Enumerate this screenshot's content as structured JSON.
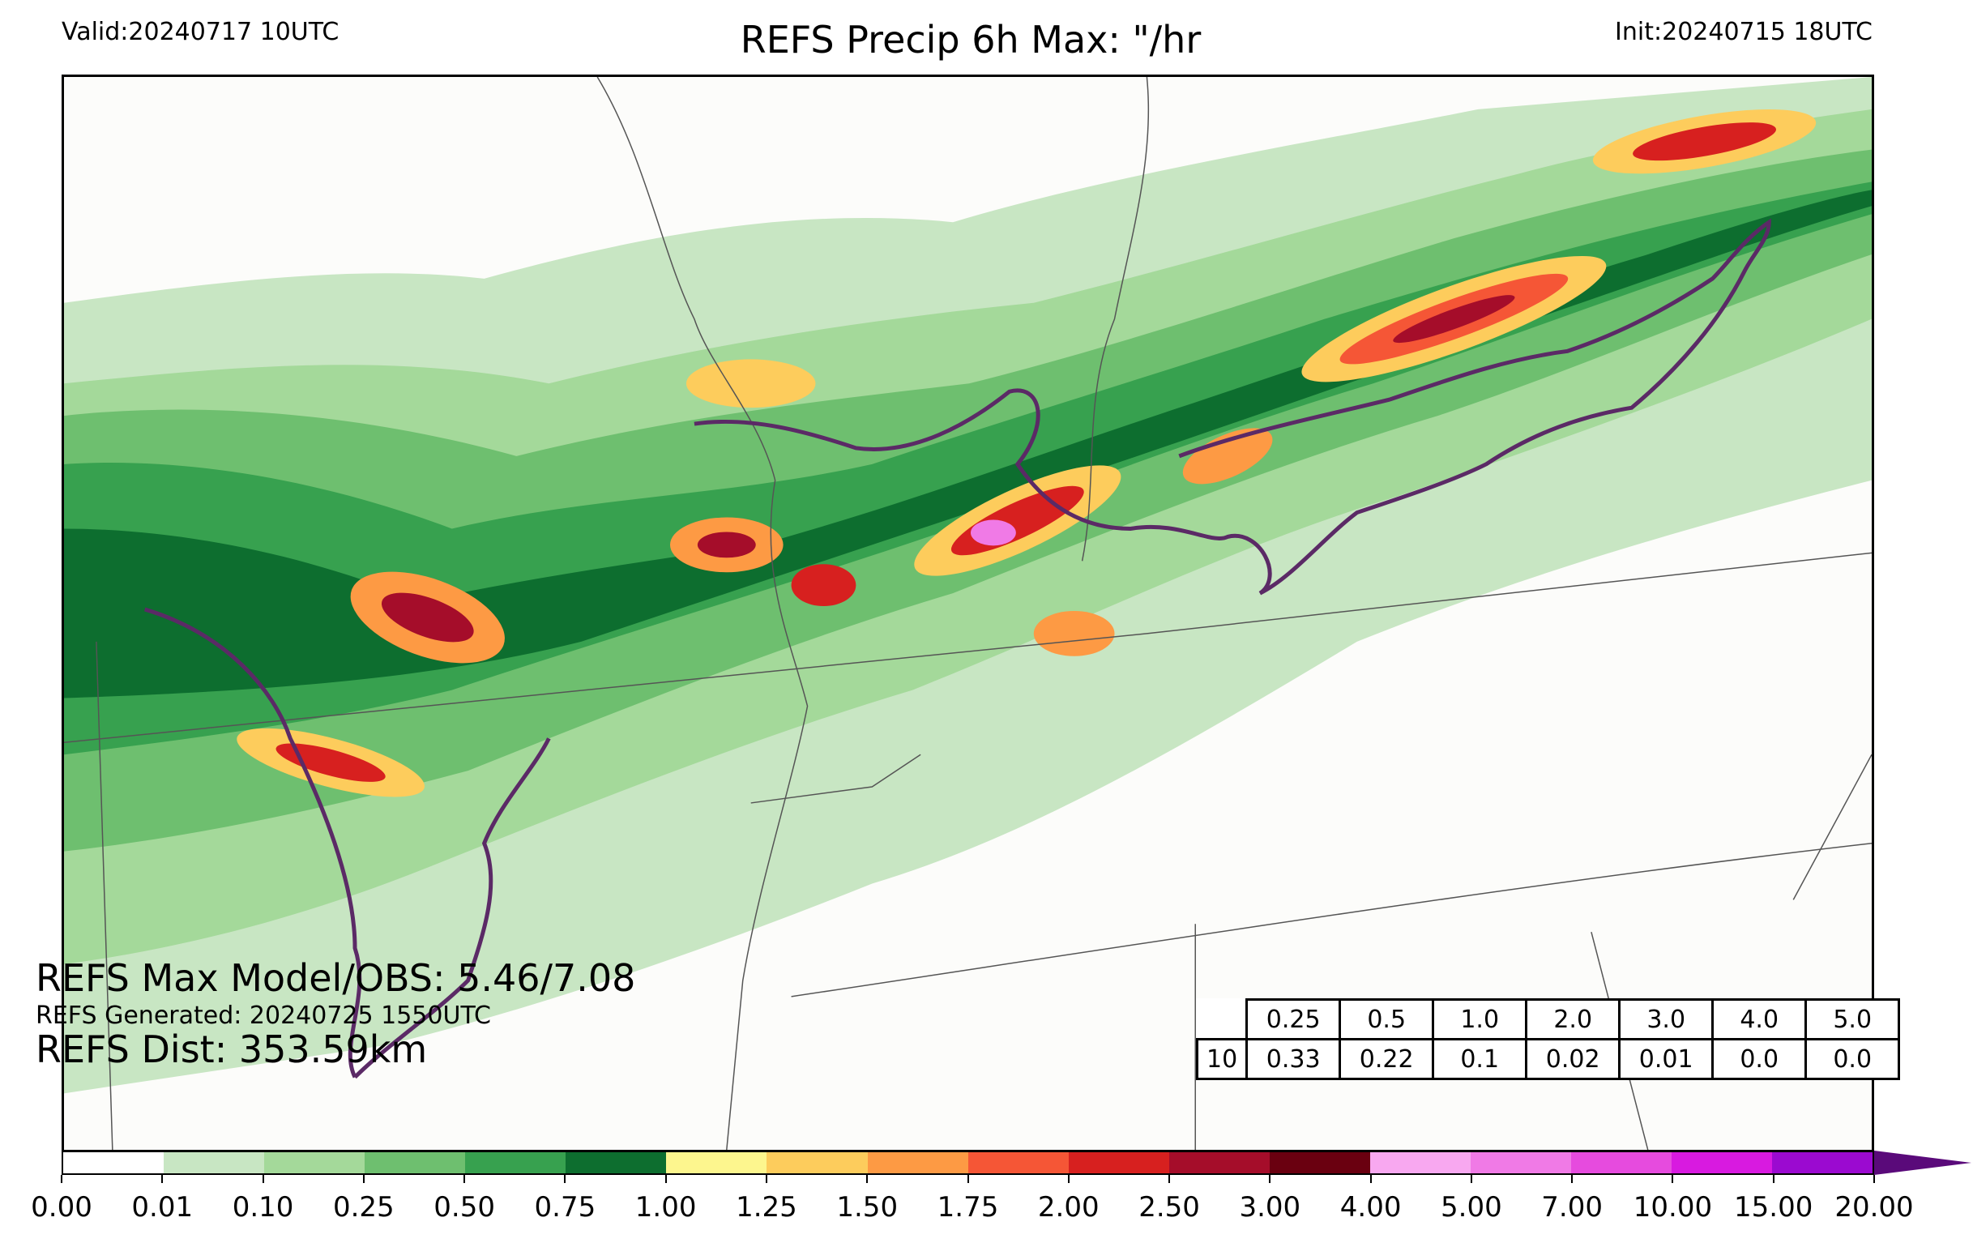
{
  "header": {
    "valid": "Valid:20240717 10UTC",
    "title": "REFS Precip 6h Max: \"/hr",
    "init": "Init:20240715 18UTC"
  },
  "stats": {
    "max_line": "REFS Max Model/OBS: 5.46/7.08",
    "generated_line": "REFS Generated: 20240725 1550UTC",
    "dist_line": "REFS Dist: 353.59km"
  },
  "prob_table": {
    "row_label": "10",
    "thresholds": [
      "0.25",
      "0.5",
      "1.0",
      "2.0",
      "3.0",
      "4.0",
      "5.0"
    ],
    "values": [
      "0.33",
      "0.22",
      "0.1",
      "0.02",
      "0.01",
      "0.0",
      "0.0"
    ]
  },
  "colorbar": {
    "ticks": [
      "0.00",
      "0.01",
      "0.10",
      "0.25",
      "0.50",
      "0.75",
      "1.00",
      "1.25",
      "1.50",
      "1.75",
      "2.00",
      "2.50",
      "3.00",
      "4.00",
      "5.00",
      "7.00",
      "10.00",
      "15.00",
      "20.00"
    ],
    "colors": [
      "#ffffff",
      "#c8e6c3",
      "#a4d99a",
      "#6ebf6f",
      "#37a14f",
      "#0d6e2f",
      "#fdf68e",
      "#fdcc5c",
      "#fd9a44",
      "#f55636",
      "#d7201f",
      "#a50d2a",
      "#6a0010",
      "#f8a8f0",
      "#f07ae6",
      "#e64bde",
      "#d81ae0",
      "#9b0ad0"
    ],
    "arrow_color": "#5a0a7a"
  }
}
